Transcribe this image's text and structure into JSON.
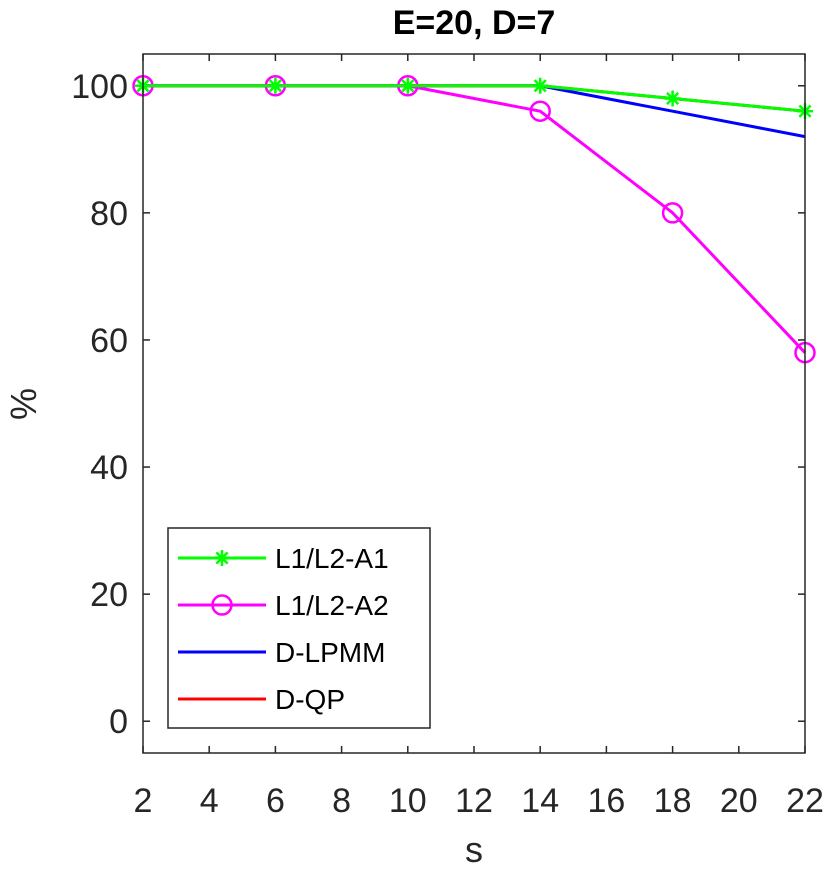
{
  "chart_data": {
    "type": "line",
    "title": "E=20, D=7",
    "xlabel": "s",
    "ylabel": "%",
    "xlim": [
      2,
      22
    ],
    "ylim": [
      -5,
      105
    ],
    "xticks": [
      2,
      4,
      6,
      8,
      10,
      12,
      14,
      16,
      18,
      20,
      22
    ],
    "yticks": [
      0,
      20,
      40,
      60,
      80,
      100
    ],
    "x": [
      2,
      6,
      10,
      14,
      18,
      22
    ],
    "grid": false,
    "legend_position": "bottom-left",
    "series": [
      {
        "name": "L1/L2-A1",
        "color": "#00ff00",
        "marker": "asterisk",
        "values": [
          100,
          100,
          100,
          100,
          98,
          96
        ]
      },
      {
        "name": "L1/L2-A2",
        "color": "#ff00ff",
        "marker": "circle",
        "values": [
          100,
          100,
          100,
          96,
          80,
          58
        ]
      },
      {
        "name": "D-LPMM",
        "color": "#0000ff",
        "marker": "none",
        "values": [
          100,
          100,
          100,
          100,
          96,
          92
        ]
      },
      {
        "name": "D-QP",
        "color": "#ff0000",
        "marker": "none",
        "values": [
          100,
          100,
          100,
          100,
          98,
          96
        ]
      }
    ],
    "draw_order": [
      2,
      3,
      1,
      0
    ]
  }
}
